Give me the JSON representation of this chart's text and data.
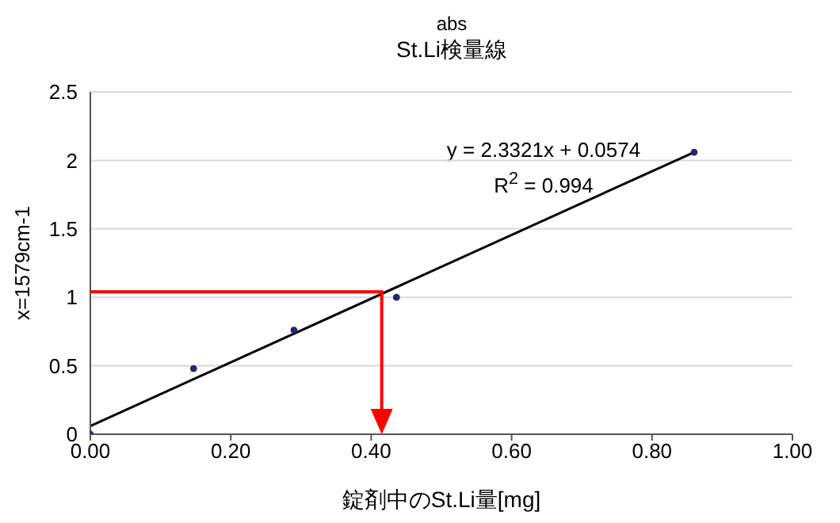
{
  "chart_data": {
    "type": "scatter",
    "subtitle": "abs",
    "title": "St.Li検量線",
    "xlabel": "錠剤中のSt.Li量[mg]",
    "ylabel": "x=1579cm-1",
    "series": [
      {
        "color": "#1f2a6b",
        "marker": "circle",
        "x": [
          0,
          0.147,
          0.29,
          0.436,
          0.86
        ],
        "values": [
          0,
          0.48,
          0.76,
          1.0,
          2.06
        ]
      },
      {
        "type": "line",
        "color": "#000000",
        "marker": "none",
        "x": [
          0,
          0.86
        ],
        "values": [
          0.06,
          2.06
        ]
      }
    ],
    "annotations": [
      "y = 2.3321x + 0.0574",
      "R$^{2}$ = 0.994"
    ],
    "xlim": [
      0,
      1
    ],
    "ylim": [
      0,
      2.5
    ],
    "xticks": [
      {
        "value": 0,
        "label": "0.00"
      },
      {
        "value": 0.2,
        "label": "0.20"
      },
      {
        "value": 0.4,
        "label": "0.40"
      },
      {
        "value": 0.6,
        "label": "0.60"
      },
      {
        "value": 0.8,
        "label": "0.80"
      },
      {
        "value": 1,
        "label": "1.00"
      }
    ],
    "yticks": [
      0,
      0.5,
      1,
      1.5,
      2,
      2.5
    ],
    "grid": "y"
  }
}
